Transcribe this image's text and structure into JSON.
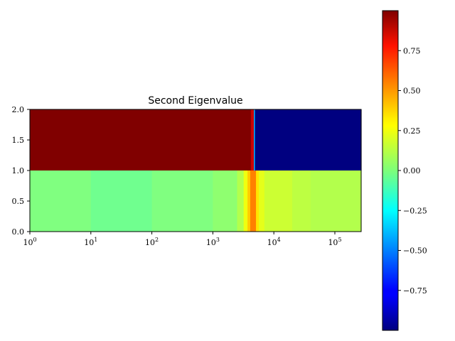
{
  "chart_data": {
    "type": "heatmap",
    "title": "Second Eigenvalue",
    "xlabel": "",
    "ylabel": "",
    "xscale": "log",
    "xlim": [
      1,
      270000
    ],
    "ylim": [
      0,
      2
    ],
    "x_tick_labels": [
      {
        "value": 1,
        "base": "10",
        "exp": "0"
      },
      {
        "value": 10,
        "base": "10",
        "exp": "1"
      },
      {
        "value": 100,
        "base": "10",
        "exp": "2"
      },
      {
        "value": 1000,
        "base": "10",
        "exp": "3"
      },
      {
        "value": 10000,
        "base": "10",
        "exp": "4"
      },
      {
        "value": 100000,
        "base": "10",
        "exp": "5"
      }
    ],
    "y_tick_labels": [
      {
        "value": 0.0,
        "label": "0.0"
      },
      {
        "value": 0.5,
        "label": "0.5"
      },
      {
        "value": 1.0,
        "label": "1.0"
      },
      {
        "value": 1.5,
        "label": "1.5"
      },
      {
        "value": 2.0,
        "label": "2.0"
      }
    ],
    "rows": [
      {
        "y_range": [
          1,
          2
        ],
        "segments": [
          {
            "x_from": 1,
            "x_to": 4200,
            "value": 1.0
          },
          {
            "x_from": 4200,
            "x_to": 4700,
            "value": 0.85
          },
          {
            "x_from": 4700,
            "x_to": 4900,
            "value": -0.4
          },
          {
            "x_from": 4900,
            "x_to": 270000,
            "value": -1.0
          }
        ]
      },
      {
        "y_range": [
          0,
          1
        ],
        "segments": [
          {
            "x_from": 1,
            "x_to": 10,
            "value": 0.0
          },
          {
            "x_from": 10,
            "x_to": 100,
            "value": -0.03
          },
          {
            "x_from": 100,
            "x_to": 1000,
            "value": 0.0
          },
          {
            "x_from": 1000,
            "x_to": 2500,
            "value": 0.03
          },
          {
            "x_from": 2500,
            "x_to": 3200,
            "value": 0.1
          },
          {
            "x_from": 3200,
            "x_to": 3700,
            "value": 0.22
          },
          {
            "x_from": 3700,
            "x_to": 4100,
            "value": 0.35
          },
          {
            "x_from": 4100,
            "x_to": 5100,
            "value": 0.5
          },
          {
            "x_from": 5100,
            "x_to": 5700,
            "value": 0.3
          },
          {
            "x_from": 5700,
            "x_to": 7000,
            "value": 0.2
          },
          {
            "x_from": 7000,
            "x_to": 20000,
            "value": 0.15
          },
          {
            "x_from": 20000,
            "x_to": 40000,
            "value": 0.12
          },
          {
            "x_from": 40000,
            "x_to": 270000,
            "value": 0.1
          }
        ]
      }
    ],
    "colorbar": {
      "colormap": "jet",
      "vmin": -1.0,
      "vmax": 1.0,
      "position": "right",
      "tick_labels": [
        {
          "value": 0.75,
          "label": "0.75"
        },
        {
          "value": 0.5,
          "label": "0.50"
        },
        {
          "value": 0.25,
          "label": "0.25"
        },
        {
          "value": 0.0,
          "label": "0.00"
        },
        {
          "value": -0.25,
          "label": "−0.25"
        },
        {
          "value": -0.5,
          "label": "−0.50"
        },
        {
          "value": -0.75,
          "label": "−0.75"
        }
      ]
    },
    "grid": false
  }
}
